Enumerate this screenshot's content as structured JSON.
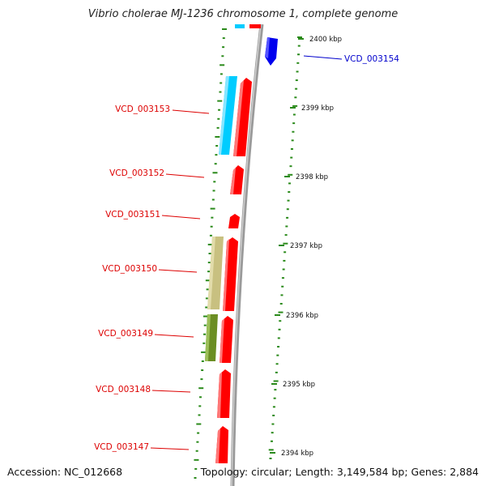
{
  "title": "Vibrio cholerae MJ-1236 chromosome 1, complete genome",
  "accession": "Accession: NC_012668",
  "topology": "Topology: circular; Length: 3,149,584 bp; Genes: 2,884",
  "colors": {
    "backbone": "#8a8a8a",
    "tick": "#2a8a1a",
    "gene_red": "#ff0000",
    "gene_blue": "#0000ee",
    "gene_cyan": "#00ccff",
    "gene_khaki": "#c8c080",
    "gene_olive": "#6b8e23",
    "label_red": "#dd0000",
    "label_blue": "#0000cc"
  },
  "scale_labels": [
    "2400 kbp",
    "2399 kbp",
    "2398 kbp",
    "2397 kbp",
    "2396 kbp",
    "2395 kbp",
    "2394 kbp"
  ],
  "gene_labels": [
    {
      "text": "VCD_003154",
      "color": "blue"
    },
    {
      "text": "VCD_003153",
      "color": "red"
    },
    {
      "text": "VCD_003152",
      "color": "red"
    },
    {
      "text": "VCD_003151",
      "color": "red"
    },
    {
      "text": "VCD_003150",
      "color": "red"
    },
    {
      "text": "VCD_003149",
      "color": "red"
    },
    {
      "text": "VCD_003148",
      "color": "red"
    },
    {
      "text": "VCD_003147",
      "color": "red"
    }
  ]
}
